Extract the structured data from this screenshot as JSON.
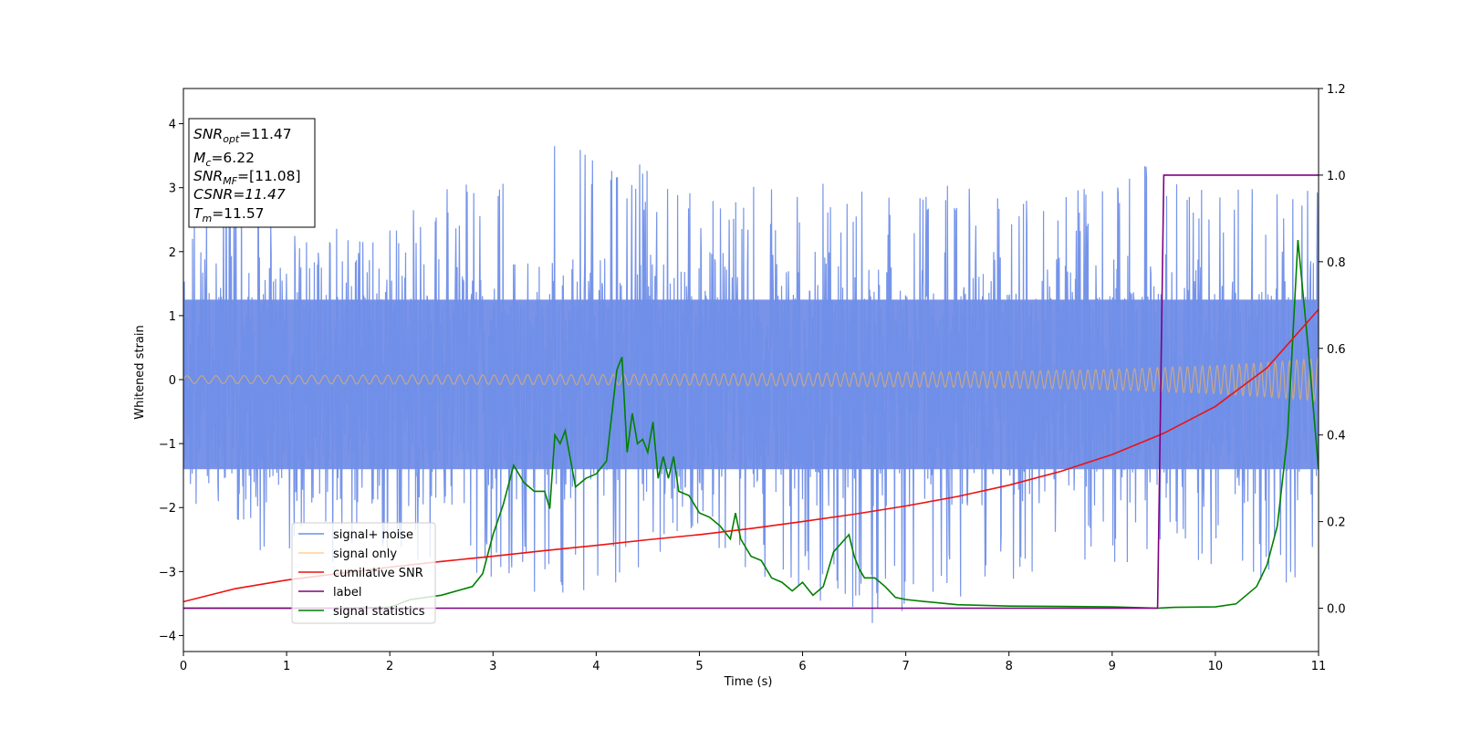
{
  "chart_data": {
    "type": "line",
    "xlabel": "Time (s)",
    "ylabel": "Whitened strain",
    "xlim": [
      0,
      11
    ],
    "ylim_left": [
      -4.25,
      4.55
    ],
    "ylim_right": [
      -0.1,
      1.2
    ],
    "xticks": [
      "0",
      "1",
      "2",
      "3",
      "4",
      "5",
      "6",
      "7",
      "8",
      "9",
      "10",
      "11"
    ],
    "yticks_left": [
      "−4",
      "−3",
      "−2",
      "−1",
      "0",
      "1",
      "2",
      "3",
      "4"
    ],
    "yticks_right": [
      "0.0",
      "0.2",
      "0.4",
      "0.6",
      "0.8",
      "1.0",
      "1.2"
    ],
    "legend_position": "lower-left",
    "grid": false,
    "annotation": {
      "snr_opt": "=11.47",
      "mc": "=6.22",
      "snr_mf": "=[11.08]",
      "csnr": "CSNR=11.47",
      "tm": "=11.57"
    },
    "series": [
      {
        "name": "signal+ noise",
        "axis": "left",
        "color": "#6f8ee8",
        "description_only": "dense whitened noise, envelope approx",
        "envelope_top": [
          [
            0,
            2.4
          ],
          [
            0.56,
            4.15
          ],
          [
            1,
            2.3
          ],
          [
            2,
            2.5
          ],
          [
            3.2,
            3.55
          ],
          [
            3.8,
            3.9
          ],
          [
            5,
            3.0
          ],
          [
            6,
            3.1
          ],
          [
            7,
            3.0
          ],
          [
            8,
            3.1
          ],
          [
            9,
            3.0
          ],
          [
            9.55,
            3.7
          ],
          [
            10,
            3.0
          ],
          [
            11,
            3.0
          ]
        ],
        "envelope_bottom": [
          [
            0,
            -2.3
          ],
          [
            1,
            -3.0
          ],
          [
            2,
            -2.8
          ],
          [
            3.8,
            -3.5
          ],
          [
            4.2,
            -3.4
          ],
          [
            5,
            -2.6
          ],
          [
            6.58,
            -3.85
          ],
          [
            8,
            -3.2
          ],
          [
            9.45,
            -2.8
          ],
          [
            10.8,
            -3.3
          ],
          [
            11,
            -2.5
          ]
        ]
      },
      {
        "name": "signal only",
        "axis": "left",
        "color": "#ffb74d",
        "amplitude_envelope": [
          [
            0,
            0.06
          ],
          [
            2,
            0.07
          ],
          [
            4,
            0.08
          ],
          [
            6,
            0.1
          ],
          [
            8,
            0.13
          ],
          [
            9,
            0.16
          ],
          [
            10,
            0.22
          ],
          [
            10.5,
            0.27
          ],
          [
            11,
            0.33
          ]
        ]
      },
      {
        "name": "cumilative SNR",
        "axis": "right",
        "color": "#ee1111",
        "x": [
          0,
          0.5,
          1,
          1.5,
          2,
          2.5,
          3,
          3.5,
          4,
          4.5,
          5,
          5.5,
          6,
          6.5,
          7,
          7.5,
          8,
          8.5,
          9,
          9.5,
          10,
          10.5,
          11
        ],
        "y": [
          0.015,
          0.045,
          0.065,
          0.08,
          0.095,
          0.108,
          0.12,
          0.133,
          0.145,
          0.158,
          0.17,
          0.184,
          0.2,
          0.217,
          0.236,
          0.258,
          0.284,
          0.316,
          0.355,
          0.404,
          0.466,
          0.555,
          0.69
        ]
      },
      {
        "name": "label",
        "axis": "right",
        "color": "#800080",
        "x": [
          0,
          9.44,
          9.5,
          11
        ],
        "y": [
          0,
          0,
          1.0,
          1.0
        ]
      },
      {
        "name": "signal statistics",
        "axis": "right",
        "color": "#008000",
        "x": [
          0,
          1.5,
          2.0,
          2.2,
          2.5,
          2.8,
          2.9,
          3.0,
          3.1,
          3.2,
          3.3,
          3.4,
          3.5,
          3.55,
          3.6,
          3.65,
          3.7,
          3.8,
          3.9,
          4.0,
          4.1,
          4.2,
          4.25,
          4.3,
          4.35,
          4.4,
          4.45,
          4.5,
          4.55,
          4.6,
          4.65,
          4.7,
          4.75,
          4.8,
          4.9,
          5.0,
          5.1,
          5.2,
          5.3,
          5.35,
          5.4,
          5.5,
          5.6,
          5.7,
          5.8,
          5.9,
          6.0,
          6.1,
          6.2,
          6.3,
          6.45,
          6.5,
          6.55,
          6.6,
          6.7,
          6.8,
          6.9,
          7.0,
          7.2,
          7.5,
          8.0,
          8.5,
          9.0,
          9.45,
          9.6,
          10.0,
          10.2,
          10.4,
          10.5,
          10.6,
          10.7,
          10.8,
          10.9,
          11.0
        ],
        "y": [
          0,
          0,
          0.002,
          0.02,
          0.03,
          0.05,
          0.08,
          0.17,
          0.24,
          0.33,
          0.29,
          0.27,
          0.27,
          0.23,
          0.4,
          0.38,
          0.41,
          0.28,
          0.3,
          0.31,
          0.34,
          0.55,
          0.58,
          0.36,
          0.45,
          0.38,
          0.39,
          0.36,
          0.43,
          0.3,
          0.35,
          0.3,
          0.35,
          0.27,
          0.26,
          0.22,
          0.21,
          0.19,
          0.16,
          0.22,
          0.16,
          0.12,
          0.11,
          0.07,
          0.06,
          0.04,
          0.06,
          0.03,
          0.05,
          0.13,
          0.17,
          0.12,
          0.09,
          0.07,
          0.07,
          0.05,
          0.025,
          0.02,
          0.015,
          0.008,
          0.005,
          0.004,
          0.003,
          0.0,
          0.002,
          0.003,
          0.01,
          0.05,
          0.1,
          0.19,
          0.4,
          0.85,
          0.6,
          0.32
        ]
      }
    ]
  }
}
